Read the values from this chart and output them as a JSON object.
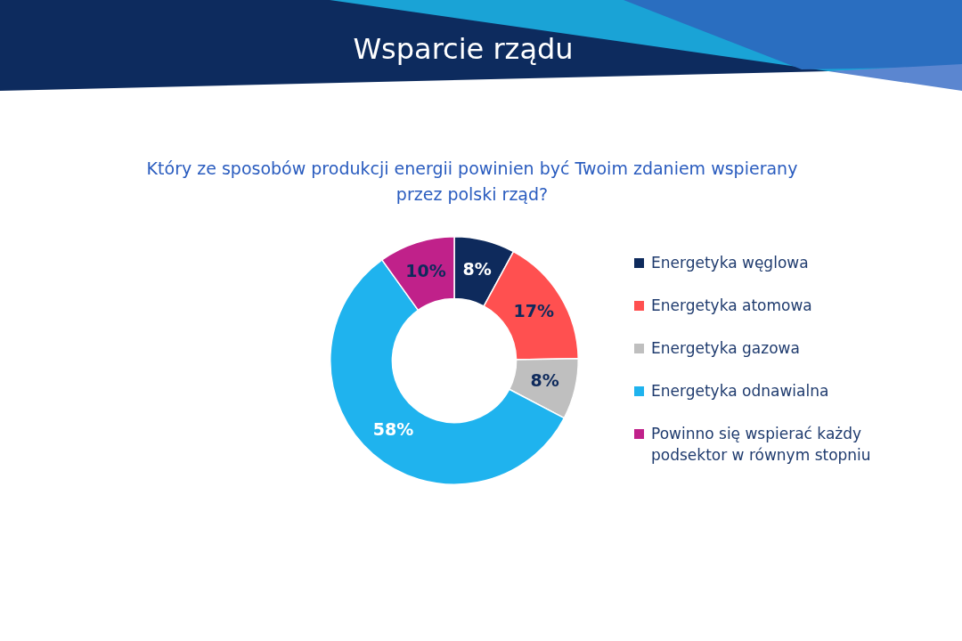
{
  "chart_data": {
    "type": "donut",
    "title": "Wsparcie rządu",
    "subtitle": "Który ze sposobów produkcji energii powinien być Twoim zdaniem wspierany\nprzez polski rząd?",
    "categories": [
      "Energetyka węglowa",
      "Energetyka atomowa",
      "Energetyka gazowa",
      "Energetyka odnawialna",
      "Powinno się wspierać każdy podsektor w równym stopniu"
    ],
    "values": [
      8,
      17,
      8,
      58,
      10
    ],
    "colors": [
      "#0e2a5c",
      "#ff5050",
      "#bfbfbf",
      "#1fb3ee",
      "#c0218a"
    ],
    "value_labels": [
      "8%",
      "17%",
      "8%",
      "58%",
      "10%"
    ],
    "legend": "right"
  }
}
